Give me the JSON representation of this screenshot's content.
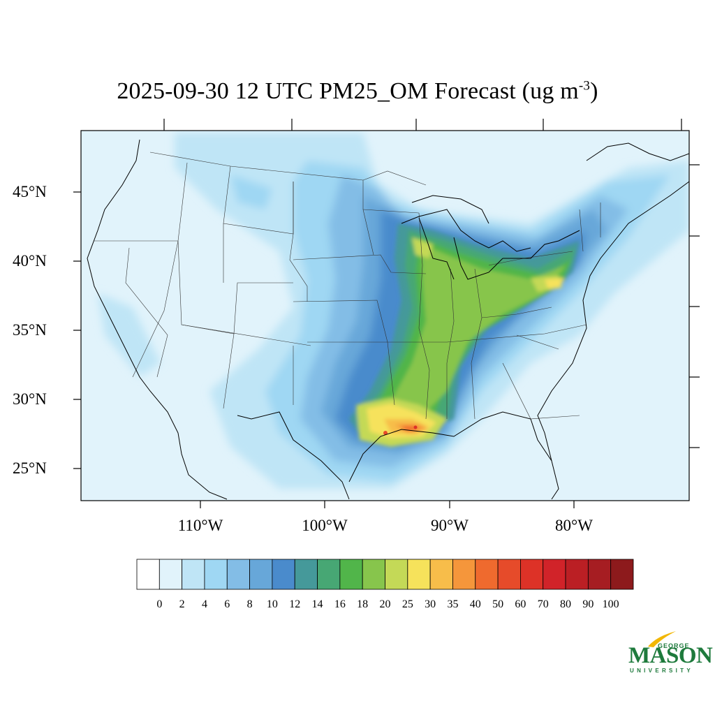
{
  "title": {
    "main": "2025-09-30 12 UTC PM25_OM Forecast (ug m",
    "sup": "-3",
    "close": ")"
  },
  "map": {
    "lat_labels": [
      "45°N",
      "40°N",
      "35°N",
      "30°N",
      "25°N"
    ],
    "lon_labels": [
      "110°W",
      "100°W",
      "90°W",
      "80°W"
    ]
  },
  "colorbar": {
    "labels": [
      "0",
      "2",
      "4",
      "6",
      "8",
      "10",
      "12",
      "14",
      "16",
      "18",
      "20",
      "25",
      "30",
      "35",
      "40",
      "50",
      "60",
      "70",
      "80",
      "90",
      "100"
    ],
    "colors": [
      "#ffffff",
      "#e1f3fb",
      "#bfe5f6",
      "#9fd7f3",
      "#83bde6",
      "#67a7d9",
      "#4a8bcc",
      "#45999a",
      "#47a774",
      "#51b54a",
      "#87c54c",
      "#c4d957",
      "#f6e25b",
      "#f7bd4a",
      "#f5963b",
      "#ef6a2e",
      "#e64b2a",
      "#dd3227",
      "#d12329",
      "#bb1f24",
      "#a61d22",
      "#8d1a1c"
    ]
  },
  "logo": {
    "line1": "GEORGE",
    "line2": "MASON",
    "line3": "UNIVERSITY",
    "color": "#1e7a3c",
    "accent": "#f2b705"
  }
}
